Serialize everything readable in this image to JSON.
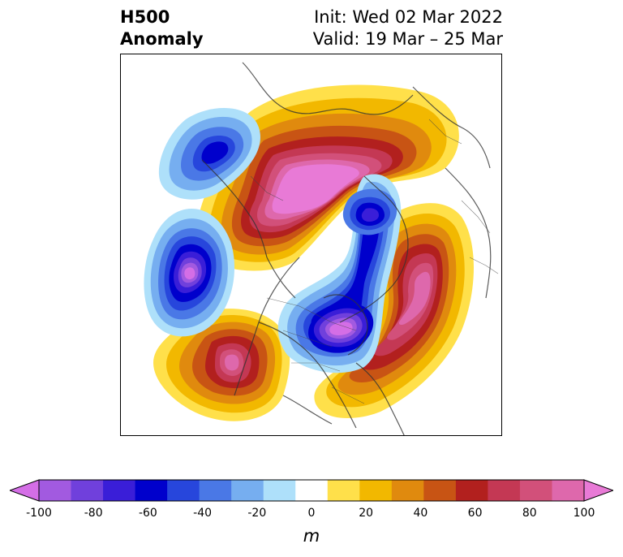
{
  "title": {
    "left_line1": "H500",
    "left_line2": "Anomaly",
    "right_line1": "Init: Wed 02 Mar 2022",
    "right_line2": "Valid: 19 Mar – 25 Mar"
  },
  "map": {
    "projection": "north-polar-stereographic",
    "variable": "500 hPa geopotential height anomaly",
    "features": [
      {
        "name": "positive-anomaly-northern-canada-greenland",
        "sign": "positive",
        "max_m": 100
      },
      {
        "name": "negative-anomaly-eastern-canada",
        "sign": "negative",
        "min_m": -100
      },
      {
        "name": "negative-anomaly-gulf-of-alaska",
        "sign": "negative",
        "min_m": -100
      },
      {
        "name": "negative-anomaly-northern-pacific",
        "sign": "negative",
        "min_m": -80
      },
      {
        "name": "negative-anomaly-kara-sea",
        "sign": "negative",
        "min_m": -70
      },
      {
        "name": "positive-anomaly-north-atlantic",
        "sign": "positive",
        "max_m": 100
      },
      {
        "name": "positive-anomaly-eastern-pacific",
        "sign": "positive",
        "max_m": 100
      }
    ]
  },
  "colorbar": {
    "unit": "m",
    "ticks": [
      "-100",
      "-80",
      "-60",
      "-40",
      "-20",
      "0",
      "20",
      "40",
      "60",
      "80",
      "100"
    ],
    "levels": [
      -100,
      -90,
      -80,
      -70,
      -60,
      -50,
      -40,
      -30,
      -20,
      -10,
      10,
      20,
      30,
      40,
      50,
      60,
      70,
      80,
      90,
      100
    ],
    "colors": [
      "#d46ee6",
      "#a25ae0",
      "#7040dc",
      "#3a1ed8",
      "#0000cc",
      "#2746dc",
      "#4a78e6",
      "#76aef0",
      "#aee0fa",
      "#ffffff",
      "#ffe04a",
      "#f2b800",
      "#e08a0e",
      "#c85414",
      "#b2201e",
      "#c43854",
      "#d2507a",
      "#de68ac",
      "#e87ad6"
    ],
    "extend": "both"
  }
}
